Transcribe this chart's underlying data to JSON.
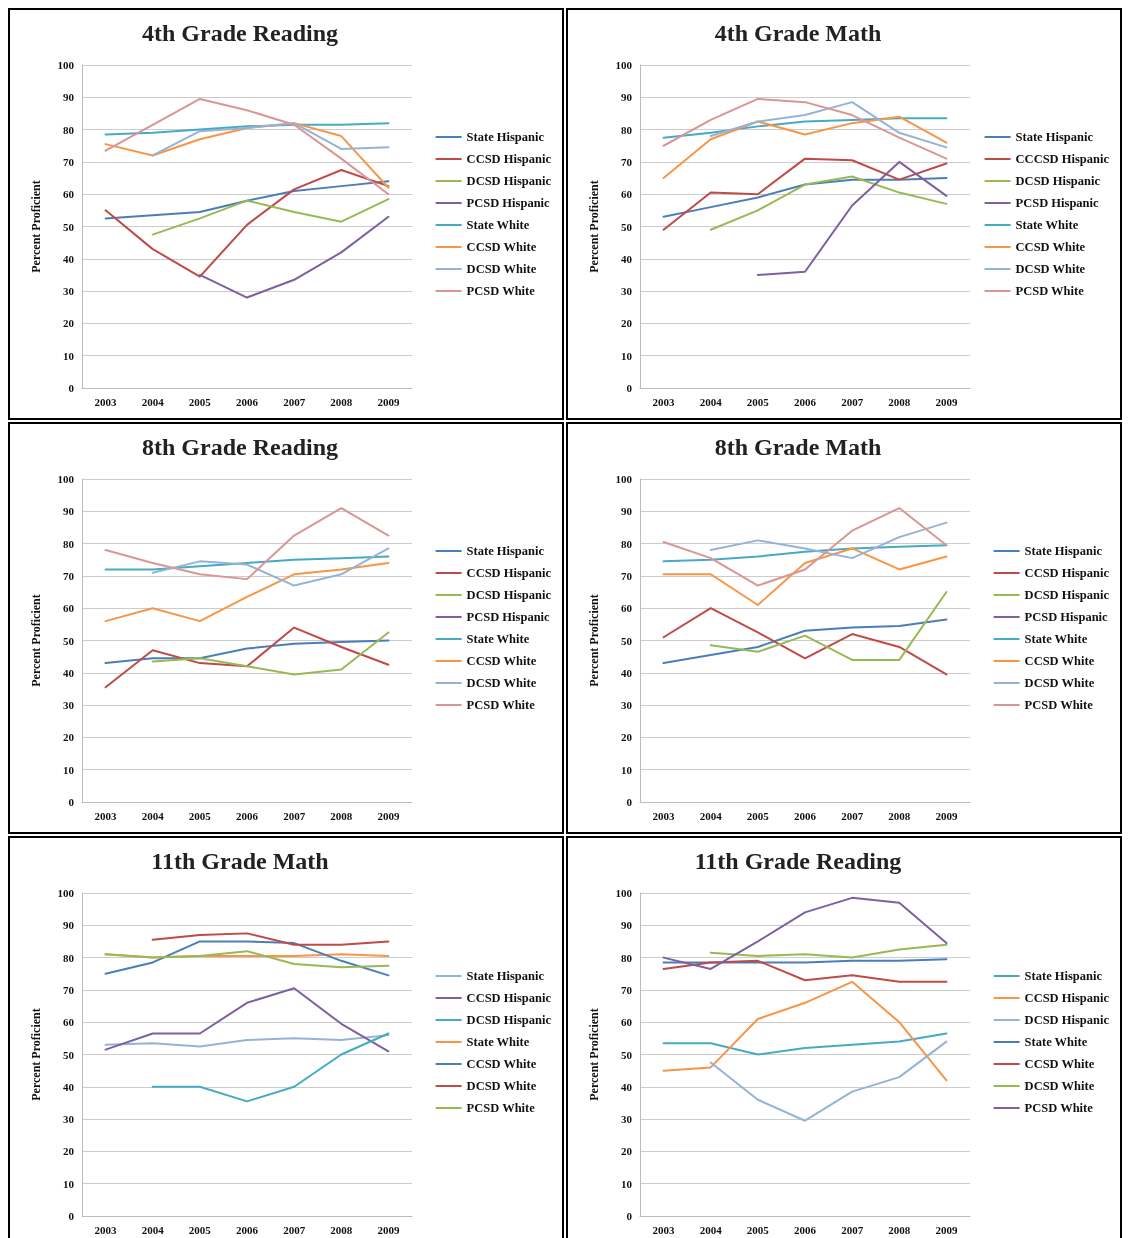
{
  "chart_data": [
    {
      "type": "line",
      "title": "4th Grade Reading",
      "ylabel": "Percent Proficient",
      "categories": [
        "2003",
        "2004",
        "2005",
        "2006",
        "2007",
        "2008",
        "2009"
      ],
      "ylim": [
        0,
        100
      ],
      "yticks": [
        0,
        10,
        20,
        30,
        40,
        50,
        60,
        70,
        80,
        90,
        100
      ],
      "grid": "y",
      "legend": "right",
      "marker": "none",
      "line_style": "solid",
      "series": [
        {
          "name": "State Hispanic",
          "color": "#4a7ebb",
          "values": [
            52.5,
            53.5,
            54.5,
            58,
            61,
            62.5,
            64
          ]
        },
        {
          "name": "CCSD Hispanic",
          "color": "#be4b48",
          "values": [
            55,
            43,
            34.5,
            50.5,
            61.5,
            67.5,
            62.5
          ]
        },
        {
          "name": "DCSD Hispanic",
          "color": "#98b954",
          "values": [
            null,
            47.5,
            52.5,
            58,
            54.5,
            51.5,
            58.5
          ]
        },
        {
          "name": "PCSD Hispanic",
          "color": "#7d60a0",
          "values": [
            null,
            null,
            35,
            28,
            33.5,
            42,
            53
          ]
        },
        {
          "name": "State White",
          "color": "#46aac5",
          "values": [
            78.5,
            79,
            80,
            81,
            81.5,
            81.5,
            82
          ]
        },
        {
          "name": "CCSD White",
          "color": "#f79646",
          "values": [
            75.5,
            72,
            77,
            80.5,
            82,
            78,
            62
          ]
        },
        {
          "name": "DCSD White",
          "color": "#95b3d7",
          "values": [
            null,
            72,
            79.5,
            80.5,
            82,
            74,
            74.5
          ]
        },
        {
          "name": "PCSD White",
          "color": "#d99694",
          "values": [
            73.5,
            81.5,
            89.5,
            86,
            81.5,
            71,
            60
          ]
        }
      ]
    },
    {
      "type": "line",
      "title": "4th Grade Math",
      "ylabel": "Percent Proficient",
      "categories": [
        "2003",
        "2004",
        "2005",
        "2006",
        "2007",
        "2008",
        "2009"
      ],
      "ylim": [
        0,
        100
      ],
      "yticks": [
        0,
        10,
        20,
        30,
        40,
        50,
        60,
        70,
        80,
        90,
        100
      ],
      "grid": "y",
      "legend": "right",
      "marker": "none",
      "line_style": "solid",
      "series": [
        {
          "name": "State Hispanic",
          "color": "#4a7ebb",
          "values": [
            53,
            56,
            59,
            63,
            64.5,
            64.5,
            65
          ]
        },
        {
          "name": "CCCSD Hispanic",
          "color": "#be4b48",
          "values": [
            49,
            60.5,
            60,
            71,
            70.5,
            64.5,
            69.5
          ]
        },
        {
          "name": "DCSD Hispanic",
          "color": "#98b954",
          "values": [
            null,
            49,
            55,
            63,
            65.5,
            60.5,
            57
          ]
        },
        {
          "name": "PCSD Hispanic",
          "color": "#7d60a0",
          "values": [
            null,
            null,
            35,
            36,
            56.5,
            70,
            59.5
          ]
        },
        {
          "name": "State White",
          "color": "#46aac5",
          "values": [
            77.5,
            79,
            81,
            82.5,
            83,
            83.5,
            83.5
          ]
        },
        {
          "name": "CCSD White",
          "color": "#f79646",
          "values": [
            65,
            77,
            82.5,
            78.5,
            82,
            84,
            76
          ]
        },
        {
          "name": "DCSD White",
          "color": "#95b3d7",
          "values": [
            null,
            78,
            82.5,
            84.5,
            88.5,
            79,
            74.5
          ]
        },
        {
          "name": "PCSD White",
          "color": "#d99694",
          "values": [
            75,
            83,
            89.5,
            88.5,
            84.5,
            77.5,
            71
          ]
        }
      ]
    },
    {
      "type": "line",
      "title": "8th Grade Reading",
      "ylabel": "Percent Proficient",
      "categories": [
        "2003",
        "2004",
        "2005",
        "2006",
        "2007",
        "2008",
        "2009"
      ],
      "ylim": [
        0,
        100
      ],
      "yticks": [
        0,
        10,
        20,
        30,
        40,
        50,
        60,
        70,
        80,
        90,
        100
      ],
      "grid": "y",
      "legend": "right",
      "marker": "none",
      "line_style": "solid",
      "series": [
        {
          "name": "State Hispanic",
          "color": "#4a7ebb",
          "values": [
            43,
            44.5,
            44.5,
            47.5,
            49,
            49.5,
            50
          ]
        },
        {
          "name": "CCSD Hispanic",
          "color": "#be4b48",
          "values": [
            35.5,
            47,
            43,
            42,
            54,
            48,
            42.5
          ]
        },
        {
          "name": "DCSD Hispanic",
          "color": "#98b954",
          "values": [
            null,
            43.5,
            44.5,
            42,
            39.5,
            41,
            52.5
          ]
        },
        {
          "name": "PCSD Hispanic",
          "color": "#7d60a0",
          "values": [
            null,
            null,
            null,
            null,
            null,
            null,
            null
          ]
        },
        {
          "name": "State White",
          "color": "#46aac5",
          "values": [
            72,
            72,
            73,
            74,
            75,
            75.5,
            76
          ]
        },
        {
          "name": "CCSD White",
          "color": "#f79646",
          "values": [
            56,
            60,
            56,
            63.5,
            70.5,
            72,
            74
          ]
        },
        {
          "name": "DCSD White",
          "color": "#95b3d7",
          "values": [
            null,
            71,
            74.5,
            73.5,
            67,
            70.5,
            78.5
          ]
        },
        {
          "name": "PCSD White",
          "color": "#d99694",
          "values": [
            78,
            74,
            70.5,
            69,
            82.5,
            91,
            82.5
          ]
        }
      ]
    },
    {
      "type": "line",
      "title": "8th Grade Math",
      "ylabel": "Percent Proficient",
      "categories": [
        "2003",
        "2004",
        "2005",
        "2006",
        "2007",
        "2008",
        "2009"
      ],
      "ylim": [
        0,
        100
      ],
      "yticks": [
        0,
        10,
        20,
        30,
        40,
        50,
        60,
        70,
        80,
        90,
        100
      ],
      "grid": "y",
      "legend": "right",
      "marker": "none",
      "line_style": "solid",
      "series": [
        {
          "name": "State Hispanic",
          "color": "#4a7ebb",
          "values": [
            43,
            45.5,
            48,
            53,
            54,
            54.5,
            56.5
          ]
        },
        {
          "name": "CCSD Hispanic",
          "color": "#be4b48",
          "values": [
            51,
            60,
            52.5,
            44.5,
            52,
            48,
            39.5
          ]
        },
        {
          "name": "DCSD Hispanic",
          "color": "#98b954",
          "values": [
            null,
            48.5,
            46.5,
            51.5,
            44,
            44,
            65
          ]
        },
        {
          "name": "PCSD Hispanic",
          "color": "#7d60a0",
          "values": [
            null,
            null,
            null,
            null,
            null,
            null,
            null
          ]
        },
        {
          "name": "State White",
          "color": "#46aac5",
          "values": [
            74.5,
            75,
            76,
            77.5,
            78.5,
            79,
            79.5
          ]
        },
        {
          "name": "CCSD White",
          "color": "#f79646",
          "values": [
            70.5,
            70.5,
            61,
            74,
            78.5,
            72,
            76
          ]
        },
        {
          "name": "DCSD White",
          "color": "#95b3d7",
          "values": [
            null,
            78,
            81,
            78.5,
            75.5,
            82,
            86.5
          ]
        },
        {
          "name": "PCSD White",
          "color": "#d99694",
          "values": [
            80.5,
            75.5,
            67,
            72,
            84,
            91,
            79.5
          ]
        }
      ]
    },
    {
      "type": "line",
      "title": "11th Grade Math",
      "ylabel": "Percent Proficient",
      "categories": [
        "2003",
        "2004",
        "2005",
        "2006",
        "2007",
        "2008",
        "2009"
      ],
      "ylim": [
        0,
        100
      ],
      "yticks": [
        0,
        10,
        20,
        30,
        40,
        50,
        60,
        70,
        80,
        90,
        100
      ],
      "grid": "y",
      "legend": "right",
      "marker": "none",
      "line_style": "solid",
      "series": [
        {
          "name": "State Hispanic",
          "color": "#95b3d7",
          "values": [
            53,
            53.5,
            52.5,
            54.5,
            55,
            54.5,
            56
          ]
        },
        {
          "name": "CCSD Hispanic",
          "color": "#7d60a0",
          "values": [
            51.5,
            56.5,
            56.5,
            66,
            70.5,
            59.5,
            51
          ]
        },
        {
          "name": "DCSD Hispanic",
          "color": "#46aac5",
          "values": [
            null,
            40,
            40,
            35.5,
            40,
            50,
            56.5
          ]
        },
        {
          "name": "State White",
          "color": "#f79646",
          "values": [
            81,
            80,
            80.5,
            80.5,
            80.5,
            81,
            80.5
          ]
        },
        {
          "name": "CCSD White",
          "color": "#4a7ebb",
          "values": [
            75,
            78.5,
            85,
            85,
            84.5,
            79,
            74.5
          ]
        },
        {
          "name": "DCSD White",
          "color": "#be4b48",
          "values": [
            null,
            85.5,
            87,
            87.5,
            84,
            84,
            85
          ]
        },
        {
          "name": "PCSD White",
          "color": "#98b954",
          "values": [
            81,
            80,
            80.5,
            82,
            78,
            77,
            77.5
          ]
        }
      ]
    },
    {
      "type": "line",
      "title": "11th Grade Reading",
      "ylabel": "Percent Proficient",
      "categories": [
        "2003",
        "2004",
        "2005",
        "2006",
        "2007",
        "2008",
        "2009"
      ],
      "ylim": [
        0,
        100
      ],
      "yticks": [
        0,
        10,
        20,
        30,
        40,
        50,
        60,
        70,
        80,
        90,
        100
      ],
      "grid": "y",
      "legend": "right",
      "marker": "none",
      "line_style": "solid",
      "series": [
        {
          "name": "State Hispanic",
          "color": "#46aac5",
          "values": [
            53.5,
            53.5,
            50,
            52,
            53,
            54,
            56.5
          ]
        },
        {
          "name": "CCSD Hispanic",
          "color": "#f79646",
          "values": [
            45,
            46,
            61,
            66,
            72.5,
            60,
            42
          ]
        },
        {
          "name": "DCSD Hispanic",
          "color": "#95b3d7",
          "values": [
            null,
            47.5,
            36,
            29.5,
            38.5,
            43,
            54
          ]
        },
        {
          "name": "State White",
          "color": "#4a7ebb",
          "values": [
            78.5,
            78.5,
            78.5,
            78.5,
            79,
            79,
            79.5
          ]
        },
        {
          "name": "CCSD White",
          "color": "#be4b48",
          "values": [
            76.5,
            78.5,
            79,
            73,
            74.5,
            72.5,
            72.5
          ]
        },
        {
          "name": "DCSD White",
          "color": "#98b954",
          "values": [
            null,
            81.5,
            80.5,
            81,
            80,
            82.5,
            84
          ]
        },
        {
          "name": "PCSD White",
          "color": "#7d60a0",
          "values": [
            80,
            76.5,
            85,
            94,
            98.5,
            97,
            84.5
          ]
        }
      ]
    }
  ]
}
